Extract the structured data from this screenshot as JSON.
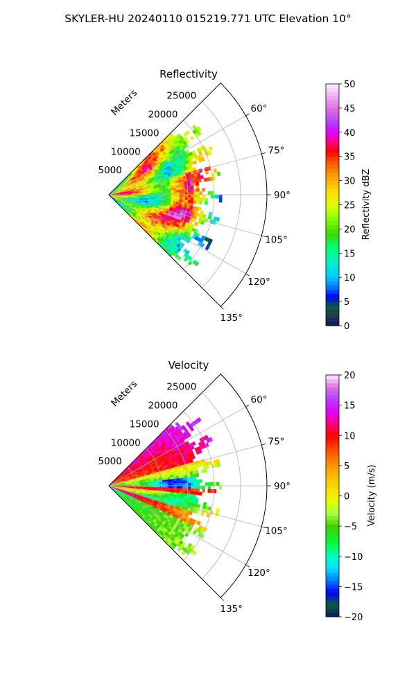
{
  "figure": {
    "suptitle": "SKYLER-HU  20240110  015219.771 UTC Elevation 10°"
  },
  "chart_data": [
    {
      "type": "heatmap",
      "projection": "polar-sector",
      "title": "Reflectivity",
      "radial_label": "Meters",
      "radial_ticks": [
        5000,
        10000,
        15000,
        20000,
        25000
      ],
      "radial_tick_labels": [
        "5000",
        "10000",
        "15000",
        "20000",
        "25000"
      ],
      "azimuth_ticks": [
        60,
        75,
        90,
        105,
        120,
        135
      ],
      "azimuth_tick_labels": [
        "60°",
        "75°",
        "90°",
        "105°",
        "120°",
        "135°"
      ],
      "azimuth_range_deg": [
        45,
        135
      ],
      "radial_range_m": [
        0,
        30000
      ],
      "data_extent_m": 21500,
      "grid": true,
      "colorbar": {
        "label": "Reflectivity dBZ",
        "range": [
          0,
          50
        ],
        "ticks": [
          0,
          5,
          10,
          15,
          20,
          25,
          30,
          35,
          40,
          45,
          50
        ],
        "tick_labels": [
          "0",
          "5",
          "10",
          "15",
          "20",
          "25",
          "30",
          "35",
          "40",
          "45",
          "50"
        ],
        "stops": [
          {
            "v": 0,
            "c": "#0c1a6b"
          },
          {
            "v": 2,
            "c": "#1f3a4a"
          },
          {
            "v": 4,
            "c": "#0b5f3a"
          },
          {
            "v": 6,
            "c": "#0000ff"
          },
          {
            "v": 8,
            "c": "#0078ff"
          },
          {
            "v": 10,
            "c": "#00c8ff"
          },
          {
            "v": 13,
            "c": "#00f0c8"
          },
          {
            "v": 16,
            "c": "#00ff80"
          },
          {
            "v": 19,
            "c": "#40d800"
          },
          {
            "v": 22,
            "c": "#80ff00"
          },
          {
            "v": 25,
            "c": "#e0ff00"
          },
          {
            "v": 28,
            "c": "#ffd800"
          },
          {
            "v": 31,
            "c": "#ffa000"
          },
          {
            "v": 34,
            "c": "#ff5000"
          },
          {
            "v": 36,
            "c": "#ff0000"
          },
          {
            "v": 38,
            "c": "#ff0080"
          },
          {
            "v": 40,
            "c": "#e000ff"
          },
          {
            "v": 42,
            "c": "#b040ff"
          },
          {
            "v": 45,
            "c": "#e070e0"
          },
          {
            "v": 50,
            "c": "#fff0ff"
          }
        ]
      }
    },
    {
      "type": "heatmap",
      "projection": "polar-sector",
      "title": "Velocity",
      "radial_label": "Meters",
      "radial_ticks": [
        5000,
        10000,
        15000,
        20000,
        25000
      ],
      "radial_tick_labels": [
        "5000",
        "10000",
        "15000",
        "20000",
        "25000"
      ],
      "azimuth_ticks": [
        60,
        75,
        90,
        105,
        120,
        135
      ],
      "azimuth_tick_labels": [
        "60°",
        "75°",
        "90°",
        "105°",
        "120°",
        "135°"
      ],
      "azimuth_range_deg": [
        45,
        135
      ],
      "radial_range_m": [
        0,
        30000
      ],
      "data_extent_m": 21500,
      "grid": true,
      "colorbar": {
        "label": "Velocity (m/s)",
        "range": [
          -20,
          20
        ],
        "ticks": [
          -20,
          -15,
          -10,
          -5,
          0,
          5,
          10,
          15,
          20
        ],
        "tick_labels": [
          "−20",
          "−15",
          "−10",
          "−5",
          "0",
          "5",
          "10",
          "15",
          "20"
        ],
        "stops": [
          {
            "v": -20,
            "c": "#0c1a6b"
          },
          {
            "v": -18,
            "c": "#0b5f3a"
          },
          {
            "v": -16,
            "c": "#0000ff"
          },
          {
            "v": -14,
            "c": "#0078ff"
          },
          {
            "v": -12,
            "c": "#00e0ff"
          },
          {
            "v": -10,
            "c": "#00ffc0"
          },
          {
            "v": -8,
            "c": "#00ff40"
          },
          {
            "v": -5,
            "c": "#40d000"
          },
          {
            "v": -3,
            "c": "#a0ff40"
          },
          {
            "v": -1,
            "c": "#e0ff00"
          },
          {
            "v": 1,
            "c": "#ffe000"
          },
          {
            "v": 4,
            "c": "#ffb000"
          },
          {
            "v": 7,
            "c": "#ff6000"
          },
          {
            "v": 10,
            "c": "#ff0000"
          },
          {
            "v": 12,
            "c": "#ff0080"
          },
          {
            "v": 14,
            "c": "#e000ff"
          },
          {
            "v": 16,
            "c": "#b040ff"
          },
          {
            "v": 18,
            "c": "#e070e0"
          },
          {
            "v": 20,
            "c": "#fff0ff"
          }
        ]
      }
    }
  ]
}
